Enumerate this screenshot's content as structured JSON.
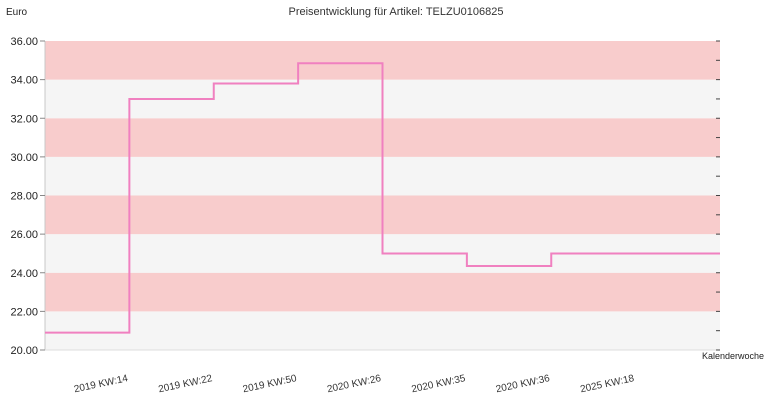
{
  "chart_data": {
    "type": "line",
    "title": "Preisentwicklung für Artikel: TELZU0106825",
    "ylabel": "Euro",
    "xlabel": "Kalenderwoche",
    "ylim": [
      20,
      36
    ],
    "yticks": [
      "20.00",
      "22.00",
      "24.00",
      "26.00",
      "28.00",
      "30.00",
      "32.00",
      "34.00",
      "36.00"
    ],
    "categories": [
      "2019 KW:14",
      "2019 KW:22",
      "2019 KW:50",
      "2020 KW:26",
      "2020 KW:35",
      "2020 KW:36",
      "2025 KW:18"
    ],
    "series": [
      {
        "values": [
          20.9,
          33.0,
          33.8,
          34.85,
          25.0,
          24.35,
          25.0
        ]
      }
    ],
    "style": "step",
    "grid": true,
    "band_colors": [
      "#f8cccc",
      "#f5f5f5"
    ],
    "line_color": "#f080c0"
  }
}
